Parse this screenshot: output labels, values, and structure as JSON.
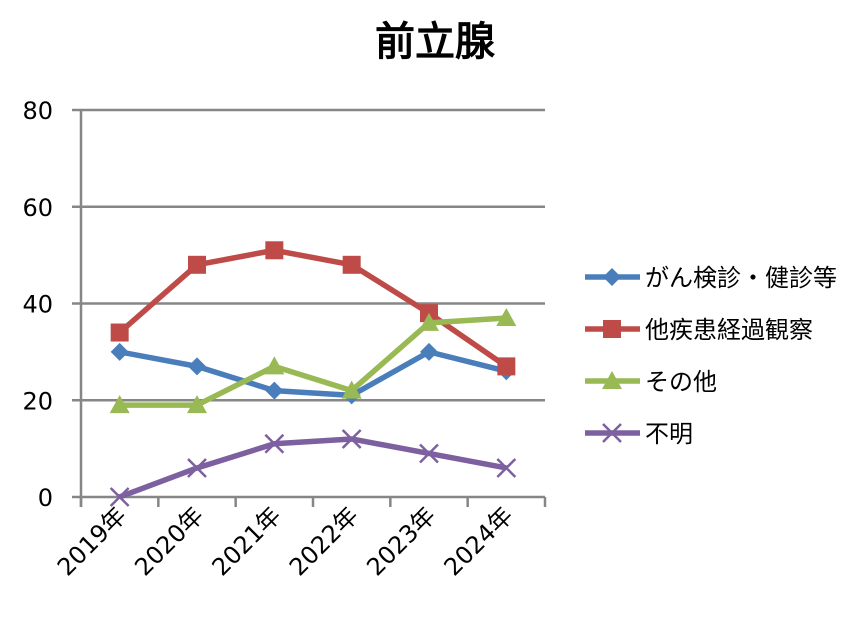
{
  "chart_data": {
    "type": "line",
    "title": "前立腺",
    "categories": [
      "2019年",
      "2020年",
      "2021年",
      "2022年",
      "2023年",
      "2024年"
    ],
    "ylim": [
      0,
      80
    ],
    "yticks": [
      0,
      20,
      40,
      60,
      80
    ],
    "grid": true,
    "legend_position": "right",
    "series": [
      {
        "name": "がん検診・健診等",
        "color": "#4a7ebb",
        "marker": "diamond",
        "values": [
          30,
          27,
          22,
          21,
          30,
          26
        ]
      },
      {
        "name": "他疾患経過観察",
        "color": "#be4b48",
        "marker": "square",
        "values": [
          34,
          48,
          51,
          48,
          38,
          27
        ]
      },
      {
        "name": "その他",
        "color": "#98b954",
        "marker": "triangle",
        "values": [
          19,
          19,
          27,
          22,
          36,
          37
        ]
      },
      {
        "name": "不明",
        "color": "#7d60a0",
        "marker": "x",
        "values": [
          0,
          6,
          11,
          12,
          9,
          6
        ]
      }
    ]
  }
}
